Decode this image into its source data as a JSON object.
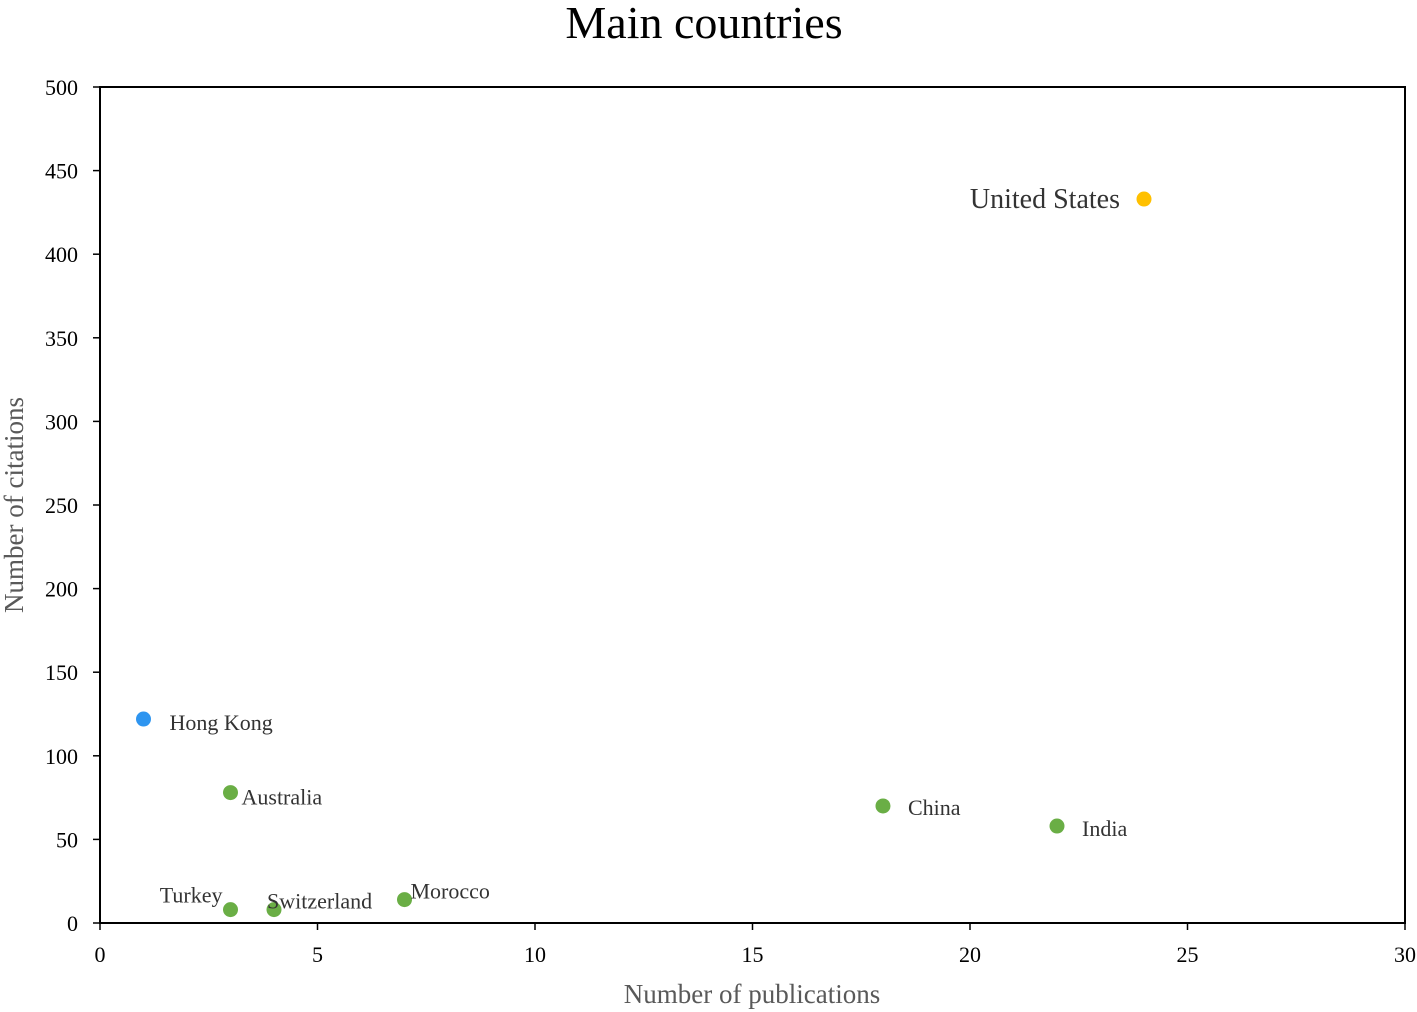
{
  "chart_data": {
    "type": "scatter",
    "title": "Main countries",
    "xlabel": "Number of publications",
    "ylabel": "Number of citations",
    "xlim": [
      0,
      30
    ],
    "ylim": [
      0,
      500
    ],
    "xticks": [
      "0",
      "5",
      "10",
      "15",
      "20",
      "25",
      "30"
    ],
    "yticks": [
      "0",
      "50",
      "100",
      "150",
      "200",
      "250",
      "300",
      "350",
      "400",
      "450",
      "500"
    ],
    "grid": false,
    "legend": "none",
    "points": [
      {
        "label": "United States",
        "x": 24,
        "y": 433,
        "color": "#ffc000",
        "label_side": "left"
      },
      {
        "label": "Hong Kong",
        "x": 1,
        "y": 122,
        "color": "#2e95f0",
        "label_side": "right"
      },
      {
        "label": "Australia",
        "x": 3,
        "y": 78,
        "color": "#6aae45",
        "label_side": "right"
      },
      {
        "label": "China",
        "x": 18,
        "y": 70,
        "color": "#6aae45",
        "label_side": "right"
      },
      {
        "label": "India",
        "x": 22,
        "y": 58,
        "color": "#6aae45",
        "label_side": "right"
      },
      {
        "label": "Morocco",
        "x": 7,
        "y": 14,
        "color": "#6aae45",
        "label_side": "right"
      },
      {
        "label": "Turkey",
        "x": 3,
        "y": 8,
        "color": "#6aae45",
        "label_side": "left"
      },
      {
        "label": "Switzerland",
        "x": 4,
        "y": 8,
        "color": "#6aae45",
        "label_side": "right"
      }
    ]
  }
}
